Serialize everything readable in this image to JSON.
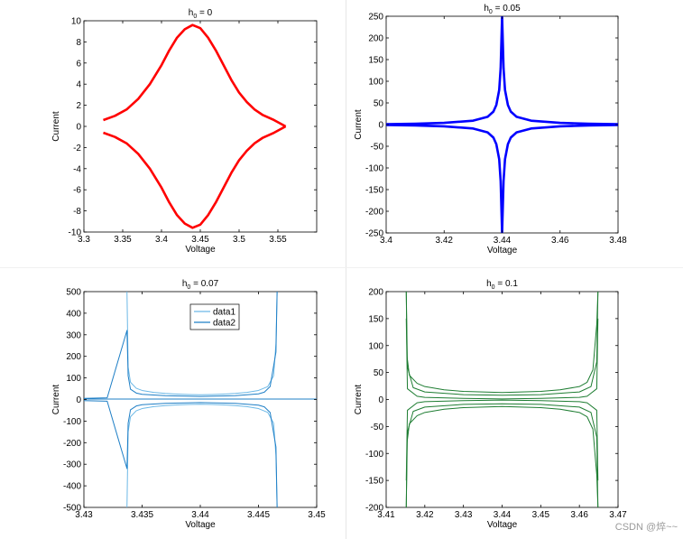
{
  "watermark": "CSDN @焠~~",
  "chart_data": [
    {
      "type": "line",
      "title": "h₀ = 0",
      "title_main": "h",
      "title_sub": "0",
      "title_rest": " = 0",
      "xlabel": "Voltage",
      "ylabel": "Current",
      "xlim": [
        3.3,
        3.6
      ],
      "ylim": [
        -10,
        10
      ],
      "xticks": [
        3.3,
        3.35,
        3.4,
        3.45,
        3.5,
        3.55
      ],
      "xtick_labels": [
        "3.3",
        "3.35",
        "3.4",
        "3.45",
        "3.5",
        "3.55"
      ],
      "yticks": [
        -10,
        -8,
        -6,
        -4,
        -2,
        0,
        2,
        4,
        6,
        8,
        10
      ],
      "ytick_labels": [
        "-10",
        "-8",
        "-6",
        "-4",
        "-2",
        "0",
        "2",
        "4",
        "6",
        "8",
        "10"
      ],
      "grid": false,
      "series": [
        {
          "color": "#ff0000",
          "x": [
            3.325,
            3.34,
            3.355,
            3.37,
            3.385,
            3.4,
            3.41,
            3.42,
            3.43,
            3.44,
            3.45,
            3.46,
            3.47,
            3.48,
            3.49,
            3.5,
            3.51,
            3.52,
            3.53,
            3.545,
            3.56
          ],
          "y": [
            0.6,
            1.0,
            1.6,
            2.6,
            4.0,
            5.8,
            7.2,
            8.4,
            9.2,
            9.6,
            9.3,
            8.4,
            7.2,
            5.8,
            4.4,
            3.2,
            2.3,
            1.6,
            1.1,
            0.6,
            0.0
          ]
        },
        {
          "color": "#ff0000",
          "x": [
            3.325,
            3.34,
            3.355,
            3.37,
            3.385,
            3.4,
            3.41,
            3.42,
            3.43,
            3.44,
            3.45,
            3.46,
            3.47,
            3.48,
            3.49,
            3.5,
            3.51,
            3.52,
            3.53,
            3.545,
            3.56
          ],
          "y": [
            -0.6,
            -1.0,
            -1.6,
            -2.6,
            -4.0,
            -5.8,
            -7.2,
            -8.4,
            -9.2,
            -9.6,
            -9.3,
            -8.4,
            -7.2,
            -5.8,
            -4.4,
            -3.2,
            -2.3,
            -1.6,
            -1.1,
            -0.6,
            0.0
          ]
        }
      ]
    },
    {
      "type": "line",
      "title": "h₀ = 0.05",
      "title_main": "h",
      "title_sub": "0",
      "title_rest": " = 0.05",
      "xlabel": "Voltage",
      "ylabel": "Current",
      "xlim": [
        3.4,
        3.48
      ],
      "ylim": [
        -250,
        250
      ],
      "xticks": [
        3.4,
        3.42,
        3.44,
        3.46,
        3.48
      ],
      "xtick_labels": [
        "3.4",
        "3.42",
        "3.44",
        "3.46",
        "3.48"
      ],
      "yticks": [
        -250,
        -200,
        -150,
        -100,
        -50,
        0,
        50,
        100,
        150,
        200,
        250
      ],
      "ytick_labels": [
        "-250",
        "-200",
        "-150",
        "-100",
        "-50",
        "0",
        "50",
        "100",
        "150",
        "200",
        "250"
      ],
      "grid": false,
      "series": [
        {
          "color": "#0000ff",
          "x": [
            3.4,
            3.41,
            3.42,
            3.43,
            3.435,
            3.437,
            3.438,
            3.439,
            3.4395,
            3.44,
            3.4405,
            3.441,
            3.442,
            3.443,
            3.445,
            3.45,
            3.46,
            3.47,
            3.48
          ],
          "y": [
            1,
            2,
            4,
            9,
            18,
            30,
            45,
            80,
            130,
            250,
            130,
            80,
            45,
            30,
            18,
            9,
            4,
            2,
            1
          ]
        },
        {
          "color": "#0000ff",
          "x": [
            3.4,
            3.41,
            3.42,
            3.43,
            3.435,
            3.437,
            3.438,
            3.439,
            3.4395,
            3.44,
            3.4405,
            3.441,
            3.442,
            3.443,
            3.445,
            3.45,
            3.46,
            3.47,
            3.48
          ],
          "y": [
            -1,
            -2,
            -4,
            -9,
            -18,
            -30,
            -45,
            -80,
            -130,
            -250,
            -130,
            -80,
            -45,
            -30,
            -18,
            -9,
            -4,
            -2,
            -1
          ]
        }
      ]
    },
    {
      "type": "line",
      "title": "h₀ = 0.07",
      "title_main": "h",
      "title_sub": "0",
      "title_rest": " = 0.07",
      "xlabel": "Voltage",
      "ylabel": "Current",
      "xlim": [
        3.43,
        3.45
      ],
      "ylim": [
        -500,
        500
      ],
      "xticks": [
        3.43,
        3.435,
        3.44,
        3.445,
        3.45
      ],
      "xtick_labels": [
        "3.43",
        "3.435",
        "3.44",
        "3.445",
        "3.45"
      ],
      "yticks": [
        -500,
        -400,
        -300,
        -200,
        -100,
        0,
        100,
        200,
        300,
        400,
        500
      ],
      "ytick_labels": [
        "-500",
        "-400",
        "-300",
        "-200",
        "-100",
        "0",
        "100",
        "200",
        "300",
        "400",
        "500"
      ],
      "grid": false,
      "legend": [
        "data1",
        "data2"
      ],
      "legend_position": "top-center",
      "series": [
        {
          "name": "data1",
          "color": "#6cb8e6",
          "x": [
            3.4337,
            3.4338,
            3.434,
            3.4345,
            3.435,
            3.436,
            3.437,
            3.438,
            3.439,
            3.44,
            3.441,
            3.442,
            3.443,
            3.444,
            3.445,
            3.4458,
            3.4463,
            3.4465,
            3.4466
          ],
          "y": [
            500,
            150,
            80,
            52,
            42,
            33,
            28,
            25,
            23,
            22,
            23,
            25,
            28,
            33,
            42,
            60,
            110,
            260,
            500
          ]
        },
        {
          "name": "data1",
          "color": "#6cb8e6",
          "x": [
            3.4337,
            3.4338,
            3.434,
            3.4345,
            3.435,
            3.436,
            3.437,
            3.438,
            3.439,
            3.44,
            3.441,
            3.442,
            3.443,
            3.444,
            3.445,
            3.4458,
            3.4463,
            3.4465,
            3.4466
          ],
          "y": [
            -500,
            -150,
            -80,
            -52,
            -42,
            -33,
            -28,
            -25,
            -23,
            -22,
            -23,
            -25,
            -28,
            -33,
            -42,
            -60,
            -110,
            -260,
            -500
          ]
        },
        {
          "name": "data2",
          "color": "#1f7fc6",
          "x": [
            3.43,
            3.432,
            3.4337,
            3.4338,
            3.434,
            3.4345,
            3.435,
            3.437,
            3.44,
            3.443,
            3.445,
            3.4455,
            3.446,
            3.4465,
            3.4466
          ],
          "y": [
            5,
            8,
            320,
            110,
            48,
            30,
            24,
            18,
            14,
            18,
            26,
            34,
            60,
            220,
            500
          ]
        },
        {
          "name": "data2",
          "color": "#1f7fc6",
          "x": [
            3.43,
            3.432,
            3.4337,
            3.4338,
            3.434,
            3.4345,
            3.435,
            3.437,
            3.44,
            3.443,
            3.445,
            3.4455,
            3.446,
            3.4465,
            3.4466
          ],
          "y": [
            -5,
            -8,
            -320,
            -110,
            -48,
            -30,
            -24,
            -18,
            -14,
            -18,
            -26,
            -34,
            -60,
            -220,
            -500
          ]
        },
        {
          "name": "data2",
          "color": "#1f7fc6",
          "x": [
            3.43,
            3.435,
            3.44,
            3.445,
            3.45
          ],
          "y": [
            2,
            2,
            2,
            2,
            2
          ]
        }
      ]
    },
    {
      "type": "line",
      "title": "h₀ = 0.1",
      "title_main": "h",
      "title_sub": "0",
      "title_rest": " = 0.1",
      "xlabel": "Voltage",
      "ylabel": "Current",
      "xlim": [
        3.41,
        3.47
      ],
      "ylim": [
        -200,
        200
      ],
      "xticks": [
        3.41,
        3.42,
        3.43,
        3.44,
        3.45,
        3.46,
        3.47
      ],
      "xtick_labels": [
        "3.41",
        "3.42",
        "3.43",
        "3.44",
        "3.45",
        "3.46",
        "3.47"
      ],
      "yticks": [
        -200,
        -150,
        -100,
        -50,
        0,
        50,
        100,
        150,
        200
      ],
      "ytick_labels": [
        "-200",
        "-150",
        "-100",
        "-50",
        "0",
        "50",
        "100",
        "150",
        "200"
      ],
      "grid": false,
      "series": [
        {
          "color": "#1e7d32",
          "x": [
            3.4152,
            3.4154,
            3.416,
            3.418,
            3.42,
            3.425,
            3.43,
            3.44,
            3.45,
            3.455,
            3.46,
            3.462,
            3.4635,
            3.4645,
            3.4648
          ],
          "y": [
            200,
            80,
            45,
            30,
            24,
            18,
            15,
            13,
            15,
            18,
            24,
            32,
            55,
            140,
            200
          ]
        },
        {
          "color": "#1e7d32",
          "x": [
            3.4152,
            3.4154,
            3.416,
            3.418,
            3.42,
            3.425,
            3.43,
            3.44,
            3.45,
            3.455,
            3.46,
            3.462,
            3.4635,
            3.4645,
            3.4648
          ],
          "y": [
            -200,
            -80,
            -45,
            -30,
            -24,
            -18,
            -15,
            -13,
            -15,
            -18,
            -24,
            -32,
            -55,
            -140,
            -200
          ]
        },
        {
          "color": "#1e7d32",
          "x": [
            3.4152,
            3.4155,
            3.417,
            3.42,
            3.43,
            3.44,
            3.45,
            3.46,
            3.463,
            3.4645,
            3.4648
          ],
          "y": [
            200,
            60,
            22,
            14,
            9,
            8,
            9,
            14,
            24,
            70,
            200
          ]
        },
        {
          "color": "#1e7d32",
          "x": [
            3.4152,
            3.4155,
            3.417,
            3.42,
            3.43,
            3.44,
            3.45,
            3.46,
            3.463,
            3.4645,
            3.4648
          ],
          "y": [
            -200,
            -60,
            -22,
            -14,
            -9,
            -8,
            -9,
            -14,
            -24,
            -70,
            -200
          ]
        },
        {
          "color": "#1e7d32",
          "x": [
            3.4152,
            3.4155,
            3.418,
            3.42,
            3.43,
            3.44,
            3.45,
            3.46,
            3.462,
            3.4645,
            3.4648
          ],
          "y": [
            150,
            20,
            6,
            4,
            2,
            1,
            2,
            4,
            6,
            20,
            150
          ]
        },
        {
          "color": "#1e7d32",
          "x": [
            3.4152,
            3.4155,
            3.418,
            3.42,
            3.43,
            3.44,
            3.45,
            3.46,
            3.462,
            3.4645,
            3.4648
          ],
          "y": [
            -150,
            -20,
            -6,
            -4,
            -2,
            -1,
            -2,
            -4,
            -6,
            -20,
            -150
          ]
        }
      ]
    }
  ]
}
